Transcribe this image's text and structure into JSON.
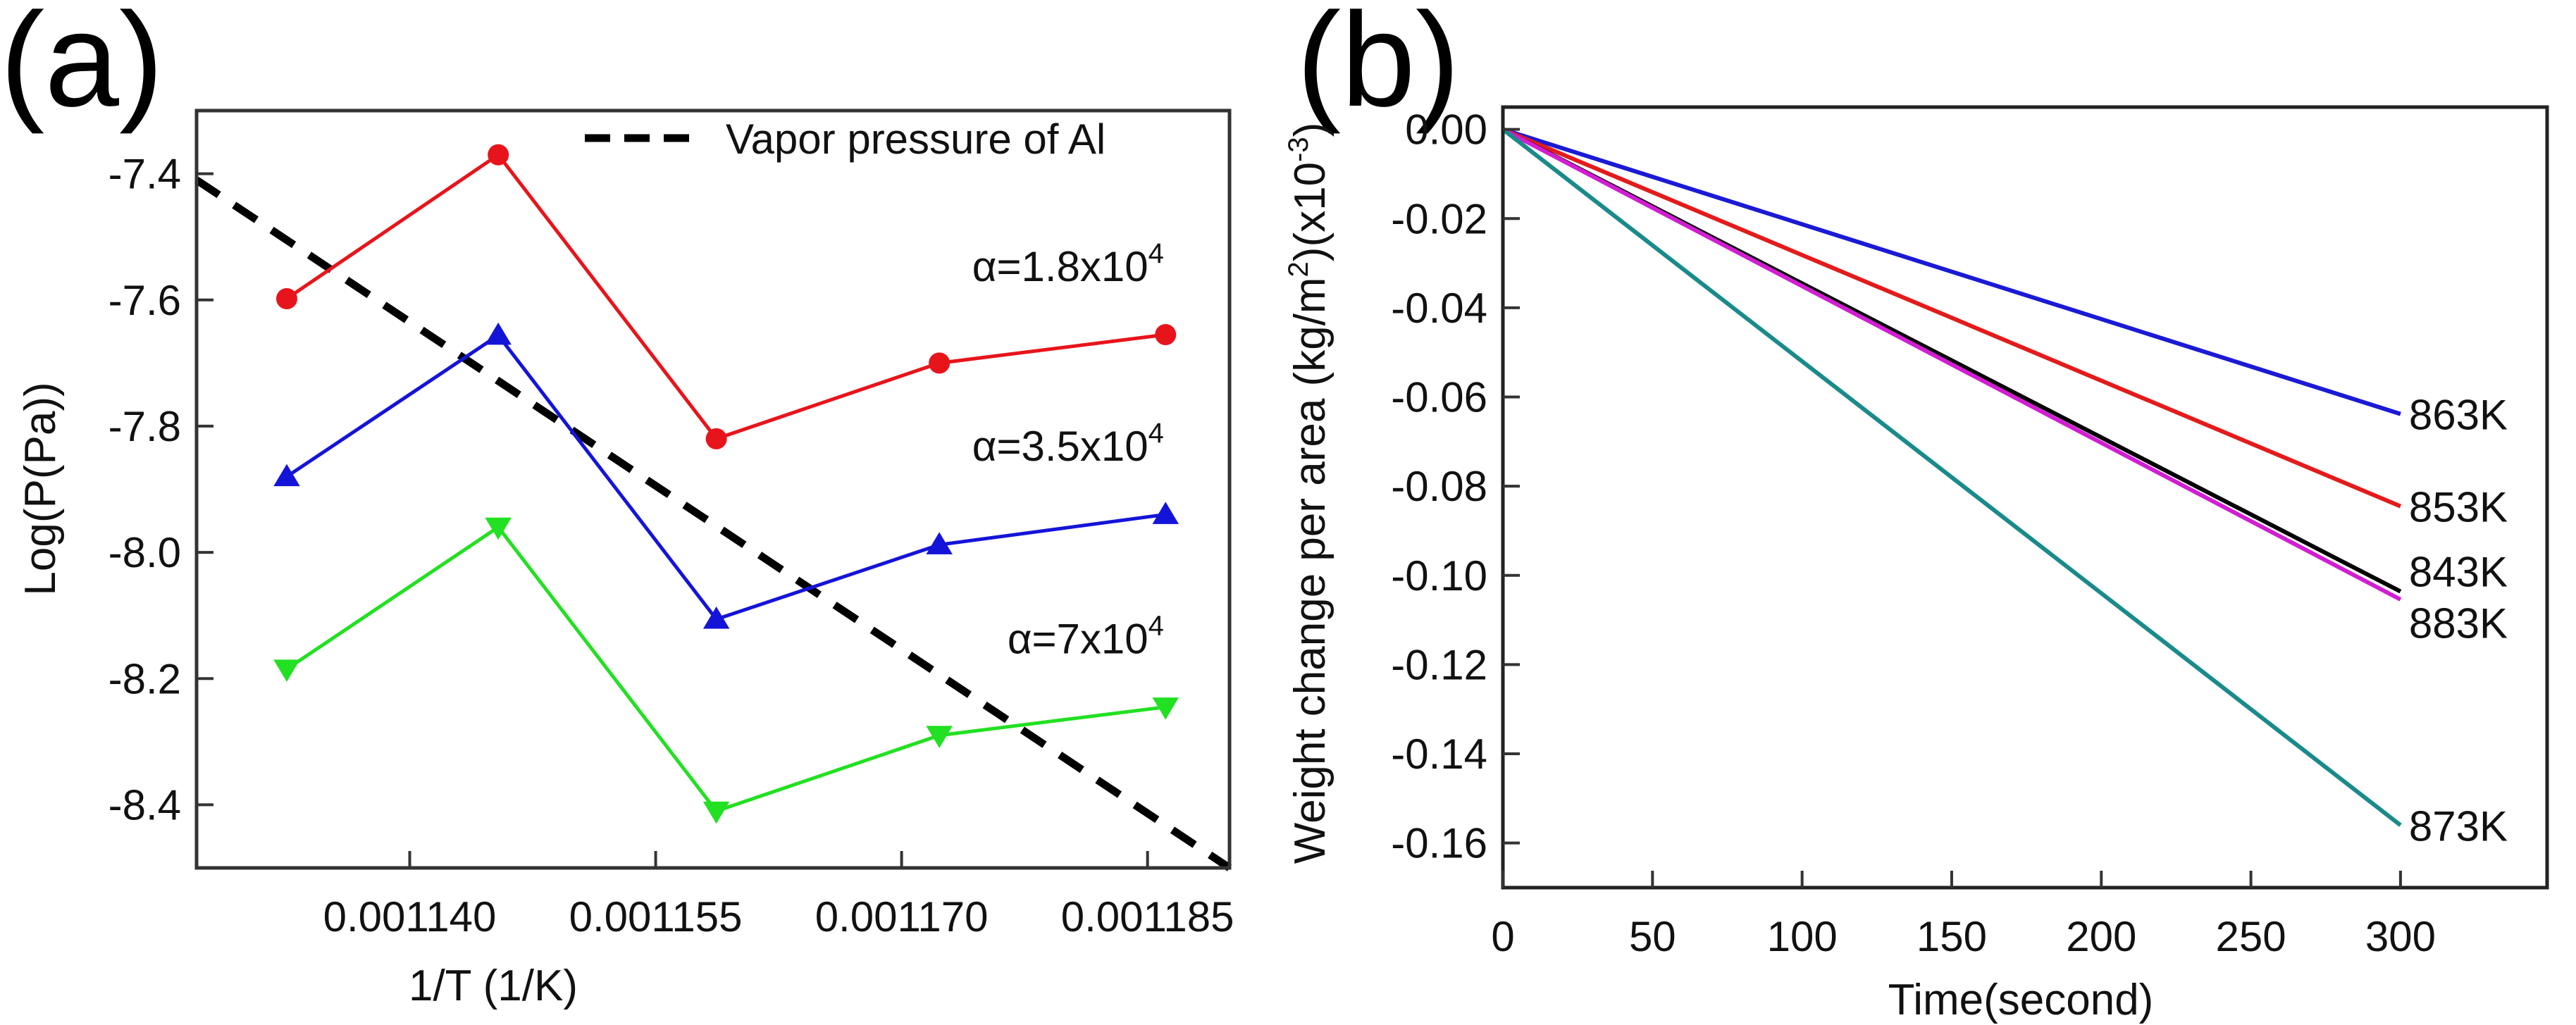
{
  "chart_data": [
    {
      "panel_label": "(a)",
      "type": "line",
      "xlabel": "1/T (1/K)",
      "ylabel": "Log(P(Pa))",
      "xlim": [
        0.001127,
        0.00119
      ],
      "ylim": [
        -8.5,
        -7.3
      ],
      "xticks": [
        0.00114,
        0.001155,
        0.00117,
        0.001185
      ],
      "xtick_labels": [
        "0.001140",
        "0.001155",
        "0.001170",
        "0.001185"
      ],
      "yticks": [
        -7.4,
        -7.6,
        -7.8,
        -8.0,
        -8.2,
        -8.4
      ],
      "ytick_labels": [
        "-7.4",
        "-7.6",
        "-7.8",
        "-8.0",
        "-8.2",
        "-8.4"
      ],
      "x": [
        0.0011325,
        0.0011454,
        0.0011587,
        0.0011723,
        0.0011861
      ],
      "series": [
        {
          "name": "α=1.8x10^4",
          "label_main": "α=1.8x10",
          "label_exp": "4",
          "color": "#e8141b",
          "marker": "circle",
          "values": [
            -7.598,
            -7.37,
            -7.82,
            -7.7,
            -7.655
          ],
          "label_at": [
            0.001186,
            -7.57
          ]
        },
        {
          "name": "α=3.5x10^4",
          "label_main": "α=3.5x10",
          "label_exp": "4",
          "color": "#1414d8",
          "marker": "triangle-up",
          "values": [
            -7.88,
            -7.656,
            -8.106,
            -7.988,
            -7.94
          ],
          "label_at": [
            0.001186,
            -7.855
          ]
        },
        {
          "name": "α=7x10^4",
          "label_main": "α=7x10",
          "label_exp": "4",
          "color": "#22e022",
          "marker": "triangle-down",
          "values": [
            -8.185,
            -7.96,
            -8.41,
            -8.29,
            -8.245
          ],
          "label_at": [
            0.001186,
            -8.16
          ]
        }
      ],
      "reference_line": {
        "name": "Vapor pressure of Al",
        "color": "#000000",
        "style": "dashed",
        "x": [
          0.001127,
          0.00119
        ],
        "y": [
          -7.41,
          -8.5
        ]
      },
      "legend": {
        "placement": "top-right",
        "entries": [
          "Vapor pressure of Al"
        ]
      }
    },
    {
      "panel_label": "(b)",
      "type": "line",
      "xlabel": "Time(second)",
      "ylabel_main": "Weight change per area (kg/m",
      "ylabel_sup1": "2",
      "ylabel_mid": ")(x10",
      "ylabel_sup2": "-3",
      "ylabel_end": ")",
      "xlim": [
        0,
        349
      ],
      "ylim": [
        -0.17,
        0.005
      ],
      "xticks": [
        0,
        50,
        100,
        150,
        200,
        250,
        300
      ],
      "xtick_labels": [
        "0",
        "50",
        "100",
        "150",
        "200",
        "250",
        "300"
      ],
      "yticks": [
        0,
        -0.02,
        -0.04,
        -0.06,
        -0.08,
        -0.1,
        -0.12,
        -0.14,
        -0.16
      ],
      "ytick_labels": [
        "0.00",
        "-0.02",
        "-0.04",
        "-0.06",
        "-0.08",
        "-0.10",
        "-0.12",
        "-0.14",
        "-0.16"
      ],
      "x": [
        0,
        300
      ],
      "series": [
        {
          "name": "863K",
          "color": "#1a1ad6",
          "values": [
            0,
            -0.0638
          ],
          "label_y": -0.0638
        },
        {
          "name": "853K",
          "color": "#e41b1b",
          "values": [
            0,
            -0.0845
          ],
          "label_y": -0.0845
        },
        {
          "name": "843K",
          "color": "#000000",
          "values": [
            0,
            -0.1036
          ],
          "label_y": -0.099
        },
        {
          "name": "883K",
          "color": "#d21ed2",
          "values": [
            0,
            -0.1054
          ],
          "label_y": -0.1105
        },
        {
          "name": "873K",
          "color": "#1a8a8a",
          "values": [
            0,
            -0.156
          ],
          "label_y": -0.156
        }
      ]
    }
  ]
}
